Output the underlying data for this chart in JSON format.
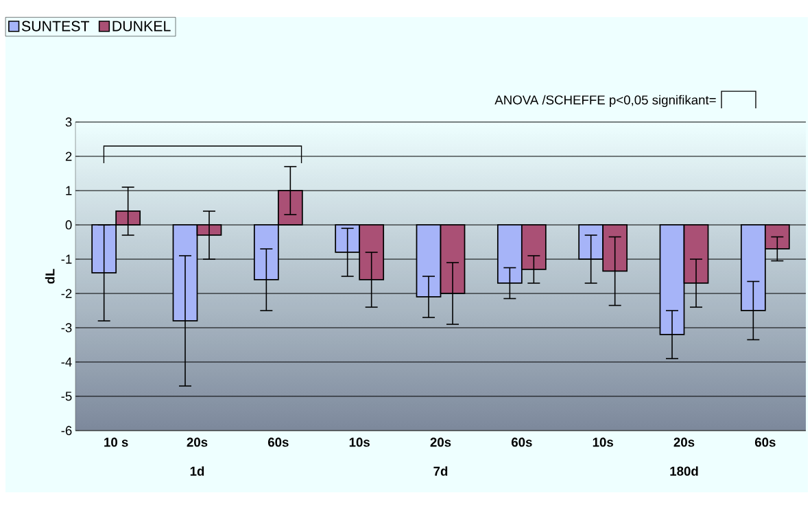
{
  "chart_data": {
    "type": "bar",
    "categories": [
      "10 s",
      "20s",
      "60s",
      "10s",
      "20s",
      "60s",
      "10s",
      "20s",
      "60s"
    ],
    "series": [
      {
        "name": "SUNTEST",
        "color": "#a6b4f8",
        "values": [
          -1.4,
          -2.8,
          -1.6,
          -0.8,
          -2.1,
          -1.7,
          -1.0,
          -3.2,
          -2.5
        ],
        "errors": [
          1.4,
          1.9,
          0.9,
          0.7,
          0.6,
          0.45,
          0.7,
          0.7,
          0.85
        ]
      },
      {
        "name": "DUNKEL",
        "color": "#aa5075",
        "values": [
          0.4,
          -0.3,
          1.0,
          -1.6,
          -2.0,
          -1.3,
          -1.35,
          -1.7,
          -0.7
        ],
        "errors": [
          0.7,
          0.7,
          0.7,
          0.8,
          0.9,
          0.4,
          1.0,
          0.7,
          0.35
        ]
      }
    ],
    "ylabel": "dL",
    "ylim": [
      -6,
      3
    ],
    "yticks": [
      -6,
      -5,
      -4,
      -3,
      -2,
      -1,
      0,
      1,
      2,
      3
    ],
    "annotations": [
      "ANOVA /SCHEFFE p<0,05 signifikant=",
      "1d",
      "7d",
      "180d"
    ],
    "grid": "y",
    "legend": "top left"
  }
}
